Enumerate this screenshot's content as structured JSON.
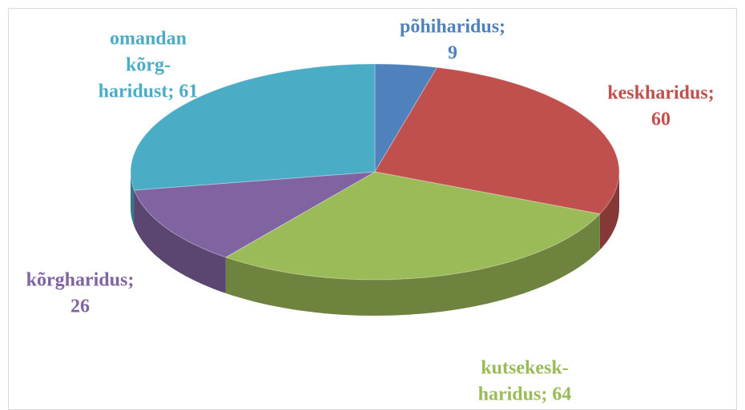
{
  "chart_data": {
    "type": "pie3d",
    "categories": [
      "põhiharidus",
      "keskharidus",
      "kutsekesk-haridus",
      "kõrgharidus",
      "omandan kõrg-haridust"
    ],
    "values": [
      9,
      60,
      64,
      26,
      61
    ],
    "colors": [
      "#4f81bd",
      "#c0504d",
      "#9bbb59",
      "#8064a2",
      "#4bacc6"
    ],
    "value_labels": [
      [
        "põhiharidus;",
        "9"
      ],
      [
        "keskharidus;",
        "60"
      ],
      [
        "kutsekesk-",
        "haridus; 64"
      ],
      [
        "kõrgharidus;",
        "26"
      ],
      [
        "omandan",
        "kõrg-",
        "haridust; 61"
      ]
    ]
  }
}
